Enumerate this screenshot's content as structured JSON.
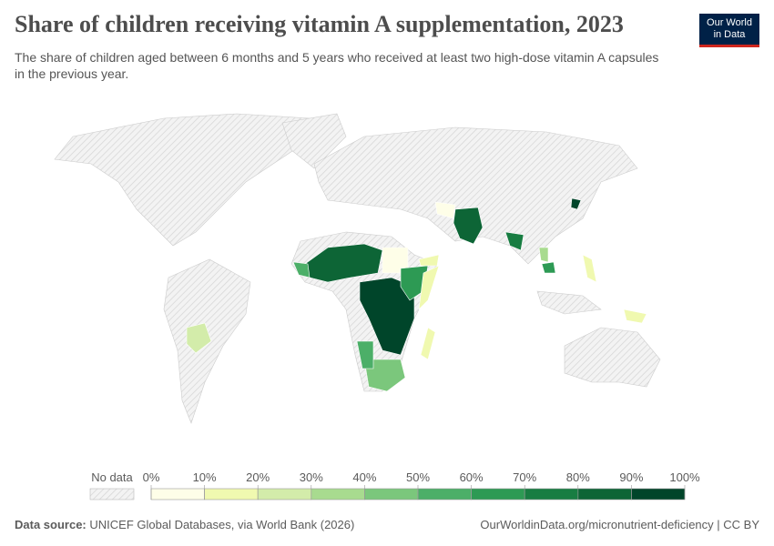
{
  "header": {
    "title": "Share of children receiving vitamin A supplementation, 2023",
    "subtitle": "The share of children aged between 6 months and 5 years who received at least two high-dose vitamin A capsules in the previous year.",
    "logo_line1": "Our World",
    "logo_line2": "in Data"
  },
  "legend": {
    "no_data": "No data",
    "ticks": [
      {
        "value": 0,
        "label": "0%"
      },
      {
        "value": 10,
        "label": "10%"
      },
      {
        "value": 20,
        "label": "20%"
      },
      {
        "value": 30,
        "label": "30%"
      },
      {
        "value": 40,
        "label": "40%"
      },
      {
        "value": 50,
        "label": "50%"
      },
      {
        "value": 60,
        "label": "60%"
      },
      {
        "value": 70,
        "label": "70%"
      },
      {
        "value": 80,
        "label": "80%"
      },
      {
        "value": 90,
        "label": "90%"
      },
      {
        "value": 100,
        "label": "100%"
      }
    ],
    "colors": [
      "#fefee8",
      "#f0f9b0",
      "#d3ecaa",
      "#a8db8f",
      "#7bc77c",
      "#4caf68",
      "#2d9a54",
      "#187d42",
      "#0d6536",
      "#00452a"
    ]
  },
  "footer": {
    "source_label": "Data source:",
    "source": "UNICEF Global Databases, via World Bank (2026)",
    "url": "OurWorldinData.org/micronutrient-deficiency | CC BY"
  }
}
